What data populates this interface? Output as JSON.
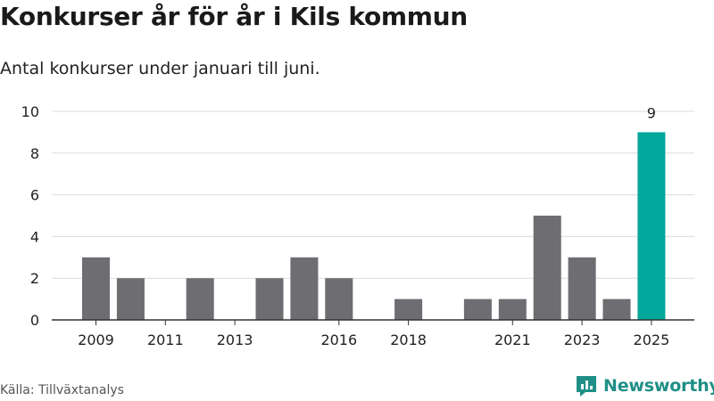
{
  "header": {
    "title": "Konkurser år för år i Kils kommun",
    "subtitle": "Antal konkurser under januari till juni."
  },
  "footer": {
    "source": "Källa: Tillväxtanalys",
    "logo_text": "Newsworthy"
  },
  "colors": {
    "bar_default": "#6d6d72",
    "bar_highlight": "#00a79a",
    "grid": "#dcdcdc",
    "axis": "#333333",
    "logo": "#1f8f87"
  },
  "chart_data": {
    "type": "bar",
    "x": [
      2009,
      2010,
      2011,
      2012,
      2013,
      2014,
      2015,
      2016,
      2017,
      2018,
      2019,
      2020,
      2021,
      2022,
      2023,
      2024,
      2025
    ],
    "values": [
      3,
      2,
      0,
      2,
      0,
      2,
      3,
      2,
      0,
      1,
      0,
      1,
      1,
      5,
      3,
      1,
      9
    ],
    "x_tick_labels": [
      "2009",
      "2011",
      "2013",
      "2016",
      "2018",
      "2021",
      "2023",
      "2025"
    ],
    "y_ticks": [
      "0",
      "2",
      "4",
      "6",
      "8",
      "10"
    ],
    "ylim": [
      0,
      10
    ],
    "highlight_year": 2025,
    "data_labels": [
      {
        "x": 2025,
        "text": "9"
      }
    ],
    "grid": true,
    "legend": false
  }
}
